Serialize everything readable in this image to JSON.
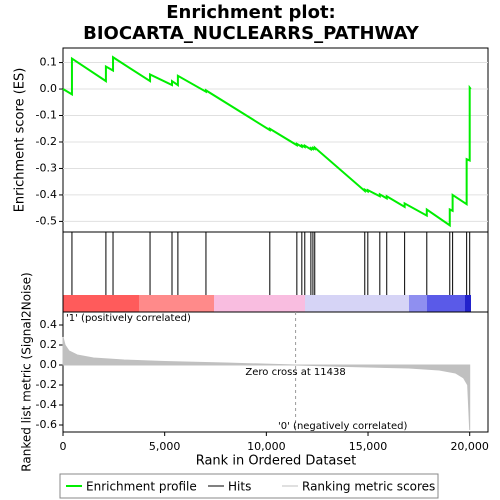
{
  "chart_data": [
    {
      "type": "line",
      "title": [
        "Enrichment plot:",
        "BIOCARTA_NUCLEARRS_PATHWAY"
      ],
      "y_label": "Enrichment score (ES)",
      "xlim": [
        0,
        20900
      ],
      "ylim": [
        -0.54,
        0.155
      ],
      "yticks": [
        0.1,
        {
          "value": 0,
          "label": "0.0"
        },
        -0.1,
        -0.2,
        -0.3,
        -0.4,
        -0.5
      ],
      "grid": true,
      "series": [
        {
          "name": "Enrichment profile",
          "color": "#00ee00",
          "x": [
            0,
            440,
            440,
            2110,
            2110,
            2460,
            2460,
            4280,
            4280,
            5360,
            5360,
            5650,
            5650,
            7030,
            7030,
            10170,
            10170,
            11500,
            11500,
            11745,
            11745,
            11890,
            11890,
            12190,
            12190,
            12290,
            12290,
            12380,
            12380,
            14840,
            14840,
            14990,
            14990,
            15580,
            15580,
            15920,
            15920,
            16800,
            16800,
            17890,
            17890,
            19020,
            19020,
            19160,
            19160,
            19850,
            19850,
            20000,
            20000,
            20050
          ],
          "values": [
            0,
            -0.02,
            0.115,
            0.03,
            0.085,
            0.07,
            0.12,
            0.03,
            0.055,
            0.015,
            0.03,
            0.015,
            0.05,
            -0.01,
            -0.005,
            -0.155,
            -0.15,
            -0.212,
            -0.207,
            -0.218,
            -0.213,
            -0.219,
            -0.214,
            -0.228,
            -0.223,
            -0.227,
            -0.222,
            -0.226,
            -0.221,
            -0.385,
            -0.38,
            -0.387,
            -0.382,
            -0.405,
            -0.398,
            -0.413,
            -0.405,
            -0.445,
            -0.432,
            -0.478,
            -0.455,
            -0.515,
            -0.455,
            -0.46,
            -0.4,
            -0.435,
            -0.265,
            -0.27,
            0.005,
            0
          ]
        }
      ]
    },
    {
      "type": "hits",
      "xlim": [
        0,
        20900
      ],
      "series": [
        {
          "name": "Hits",
          "color": "#000000",
          "x": [
            440,
            2110,
            2460,
            4280,
            5360,
            5650,
            7030,
            10170,
            11500,
            11745,
            11890,
            12190,
            12290,
            12380,
            14840,
            14990,
            15580,
            15920,
            16800,
            17890,
            19020,
            19160,
            19850,
            20000
          ]
        }
      ]
    },
    {
      "type": "area",
      "y_label": "Ranked list metric (Signal2Noise)",
      "x_label": "Rank in Ordered Dataset",
      "xlim": [
        0,
        20900
      ],
      "ylim": [
        -0.67,
        0.53
      ],
      "xticks": [
        0,
        {
          "value": 5000,
          "label": "5,000"
        },
        {
          "value": 10000,
          "label": "10,000"
        },
        {
          "value": 15000,
          "label": "15,000"
        },
        {
          "value": 20000,
          "label": "20,000"
        }
      ],
      "yticks": [
        0.4,
        0.2,
        {
          "value": 0,
          "label": "0.0"
        },
        -0.2,
        -0.4,
        -0.6
      ],
      "zero_cross": 11438,
      "zero_cross_label": "Zero cross at 11438",
      "pos_label": "'1' (positively correlated)",
      "neg_label": "'0' (negatively correlated)",
      "series": [
        {
          "name": "Ranking metric scores",
          "color": "#c0c0c0",
          "x": [
            0,
            100,
            300,
            700,
            1500,
            3000,
            5000,
            8000,
            11438,
            14000,
            17000,
            18500,
            19300,
            19700,
            19900,
            20000
          ],
          "values": [
            0.28,
            0.2,
            0.14,
            0.1,
            0.07,
            0.05,
            0.035,
            0.02,
            0,
            -0.015,
            -0.03,
            -0.05,
            -0.08,
            -0.13,
            -0.2,
            -0.65
          ]
        }
      ]
    }
  ]
}
